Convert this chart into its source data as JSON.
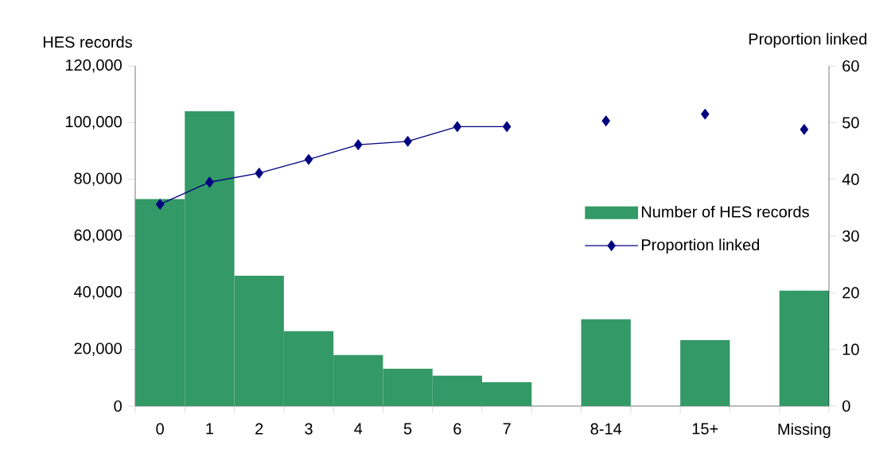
{
  "chart_data": {
    "type": "bar",
    "ylabel": "HES records",
    "y2label": "Proportion linked",
    "categories": [
      "0",
      "1",
      "2",
      "3",
      "4",
      "5",
      "6",
      "7",
      null,
      "8-14",
      null,
      "15+",
      null,
      "Missing"
    ],
    "series": [
      {
        "name": "Number of HES records",
        "color": "#339966",
        "values": [
          73000,
          104000,
          46000,
          26400,
          18000,
          13200,
          10700,
          8400,
          null,
          30600,
          null,
          23300,
          null,
          40700
        ]
      },
      {
        "name": "Proportion linked",
        "type": "line",
        "axis": "y2",
        "color": "#000080",
        "values": [
          35.6,
          39.5,
          41.1,
          43.5,
          46.1,
          46.7,
          49.3,
          49.3,
          null,
          50.3,
          null,
          51.5,
          null,
          48.8
        ]
      }
    ],
    "marker": "diamond",
    "legend": "right",
    "ylim": [
      0,
      120000
    ],
    "yticks": [
      0,
      {
        "value": 20000,
        "label": "20,000"
      },
      {
        "value": 40000,
        "label": "40,000"
      },
      {
        "value": 60000,
        "label": "60,000"
      },
      {
        "value": 80000,
        "label": "80,000"
      },
      {
        "value": 100000,
        "label": "100,000"
      },
      {
        "value": 120000,
        "label": "120,000"
      }
    ],
    "y2lim": [
      0,
      60
    ],
    "y2ticks": [
      0,
      10,
      20,
      30,
      40,
      50,
      60
    ]
  }
}
